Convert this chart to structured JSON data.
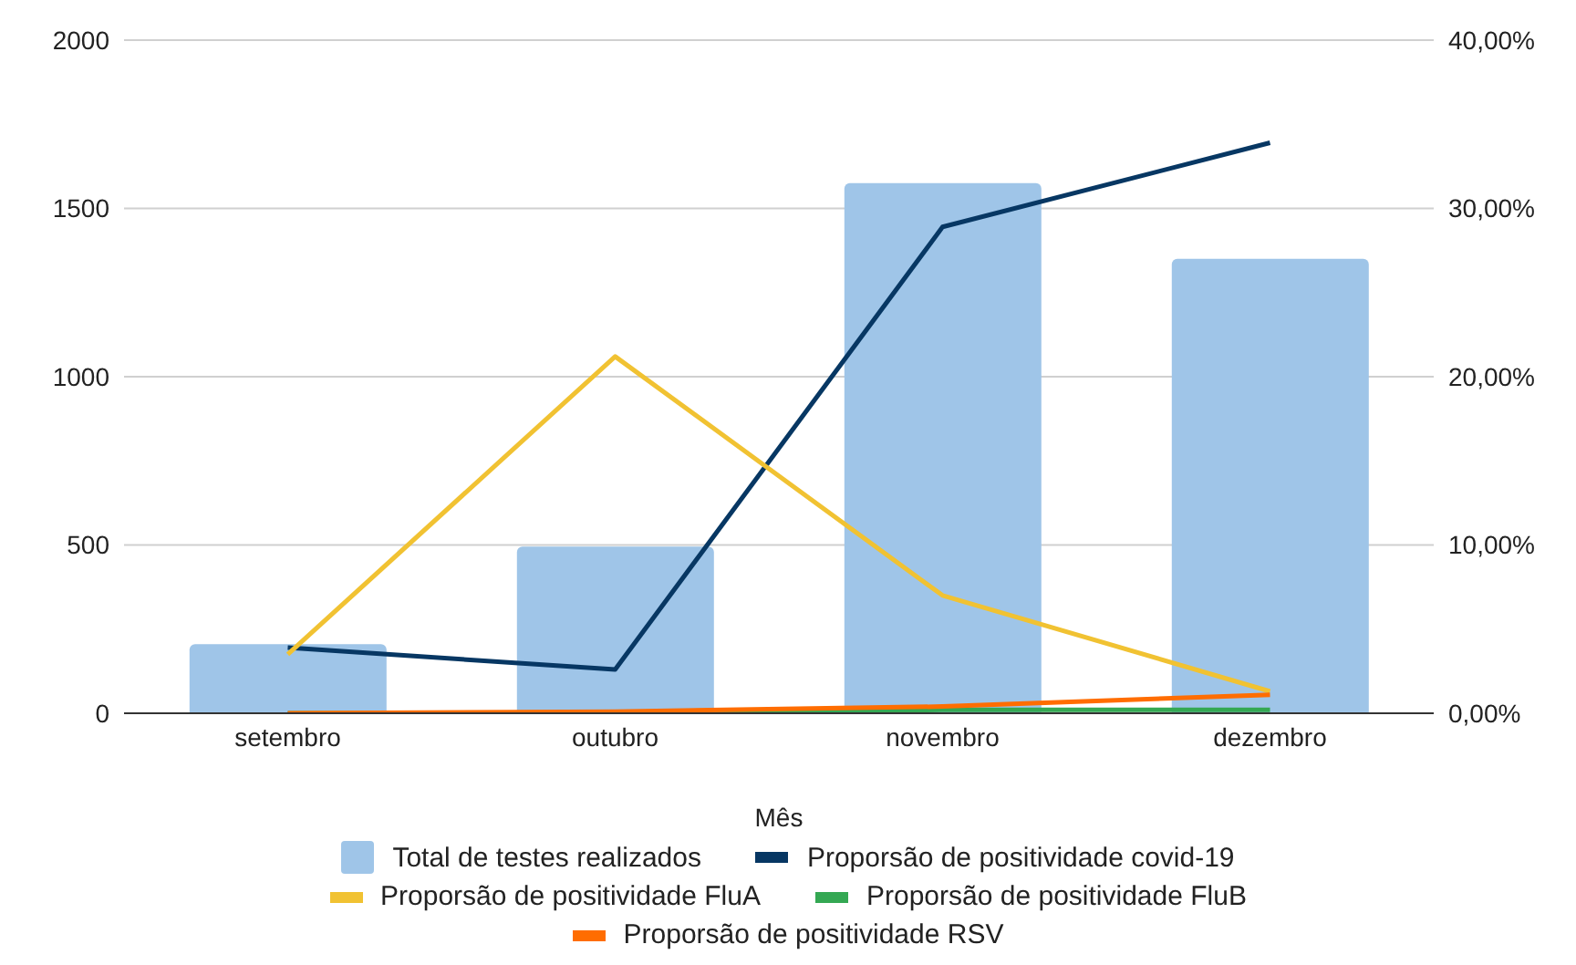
{
  "chart_data": {
    "type": "bar",
    "xlabel": "Mês",
    "categories": [
      "setembro",
      "outubro",
      "novembro",
      "dezembro"
    ],
    "series": [
      {
        "name": "Total de testes realizados",
        "color": "#9fc5e8",
        "values": [
          205,
          495,
          1575,
          1350
        ]
      },
      {
        "name": "Proporsão de positividade covid-19",
        "type": "line",
        "axis": "y2",
        "color": "#073763",
        "values": [
          3.9,
          2.6,
          28.9,
          33.9
        ]
      },
      {
        "name": "Proporsão de positividade FluA",
        "type": "line",
        "axis": "y2",
        "color": "#f1c232",
        "values": [
          3.5,
          21.2,
          7.0,
          1.3
        ]
      },
      {
        "name": "Proporsão de positividade FluB",
        "type": "line",
        "axis": "y2",
        "color": "#34a853",
        "values": [
          0,
          0,
          0.2,
          0.2
        ]
      },
      {
        "name": "Proporsão de positividade RSV",
        "type": "line",
        "axis": "y2",
        "color": "#ff6d01",
        "values": [
          0,
          0.1,
          0.4,
          1.1
        ]
      }
    ],
    "ylim": [
      0,
      2000
    ],
    "yticks": [
      0,
      500,
      1000,
      1500,
      2000
    ],
    "y2lim": [
      0,
      40
    ],
    "y2ticks": [
      {
        "value": 0,
        "label": "0,00%"
      },
      {
        "value": 10,
        "label": "10,00%"
      },
      {
        "value": 20,
        "label": "20,00%"
      },
      {
        "value": 30,
        "label": "30,00%"
      },
      {
        "value": 40,
        "label": "40,00%"
      }
    ],
    "grid": "y",
    "legend": "bottom",
    "marker": "none",
    "line_style": "solid"
  }
}
